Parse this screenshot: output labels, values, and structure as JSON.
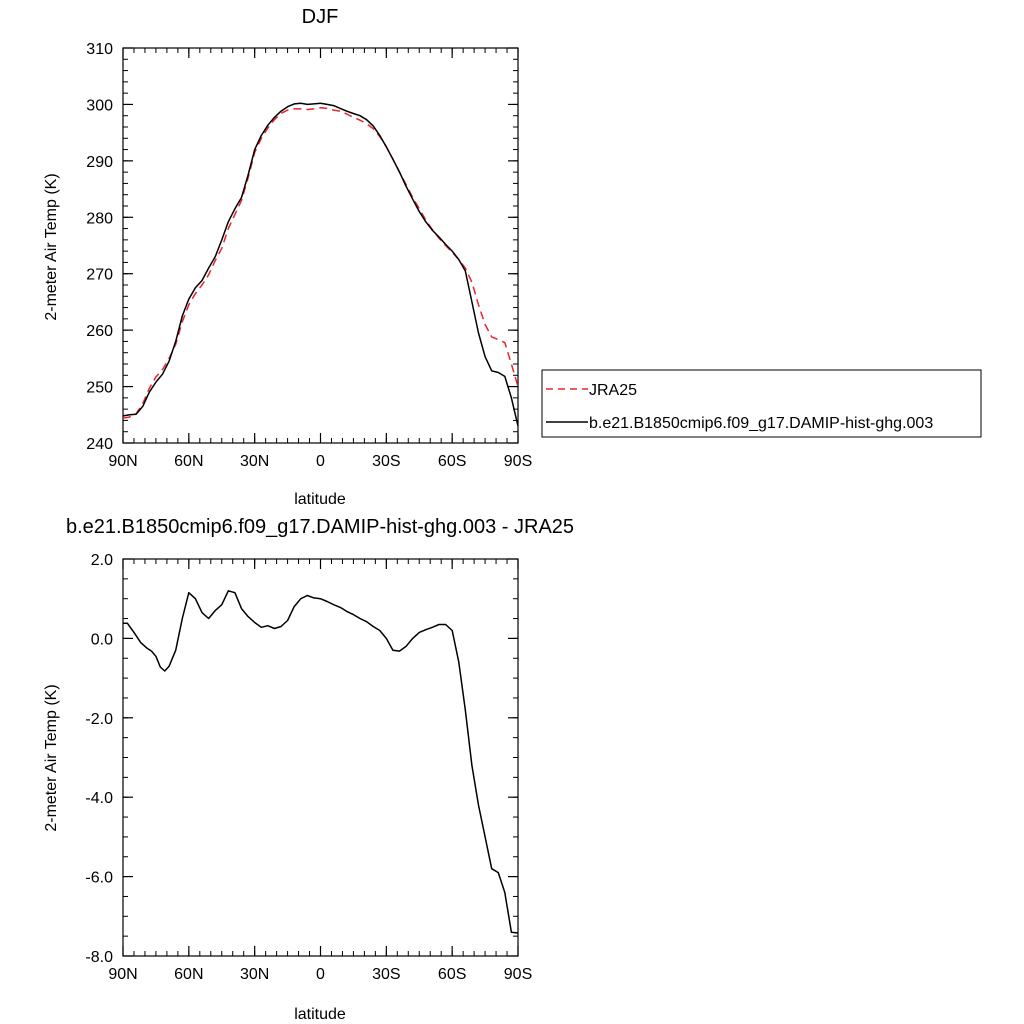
{
  "chart_data": [
    {
      "type": "line",
      "title": "DJF",
      "xlabel": "latitude",
      "ylabel": "2-meter Air Temp (K)",
      "xlim": [
        90,
        -90
      ],
      "ylim": [
        240,
        310
      ],
      "x_ticks": [
        90,
        60,
        30,
        0,
        -30,
        -60,
        -90
      ],
      "x_tick_labels": [
        "90N",
        "60N",
        "30N",
        "0",
        "30S",
        "60S",
        "90S"
      ],
      "y_ticks": [
        240,
        250,
        260,
        270,
        280,
        290,
        300,
        310
      ],
      "y_tick_labels": [
        "240",
        "250",
        "260",
        "270",
        "280",
        "290",
        "300",
        "310"
      ],
      "grid": false,
      "legend_position": "right",
      "series": [
        {
          "name": "JRA25",
          "color": "#e8242d",
          "style": "dashed",
          "x": [
            90,
            87,
            84,
            81,
            78,
            75,
            72,
            69,
            66,
            63,
            60,
            57,
            54,
            51,
            48,
            45,
            42,
            39,
            36,
            33,
            30,
            27,
            24,
            21,
            18,
            15,
            12,
            9,
            6,
            3,
            0,
            -3,
            -6,
            -9,
            -12,
            -15,
            -18,
            -21,
            -24,
            -27,
            -30,
            -33,
            -36,
            -39,
            -42,
            -45,
            -48,
            -51,
            -54,
            -57,
            -60,
            -63,
            -66,
            -69,
            -72,
            -75,
            -78,
            -81,
            -84,
            -87,
            -90
          ],
          "y": [
            244.4,
            244.6,
            245.2,
            247.0,
            249.7,
            251.7,
            253.0,
            255.0,
            257.5,
            261.5,
            264.5,
            266.5,
            268.0,
            269.8,
            272.3,
            274.5,
            278.0,
            280.5,
            283.0,
            287.0,
            291.5,
            294.0,
            295.8,
            297.3,
            298.4,
            299.0,
            299.2,
            299.2,
            299.1,
            299.2,
            299.4,
            299.3,
            299.0,
            298.8,
            298.3,
            297.7,
            297.2,
            296.6,
            295.7,
            294.3,
            292.5,
            290.3,
            288.0,
            285.8,
            283.5,
            281.5,
            279.5,
            277.8,
            276.3,
            275.0,
            273.8,
            272.5,
            271.0,
            268.5,
            264.5,
            261.0,
            258.8,
            258.3,
            257.8,
            254.0,
            250.0
          ]
        },
        {
          "name": "b.e21.B1850cmip6.f09_g17.DAMIP-hist-ghg.003",
          "color": "#000000",
          "style": "solid",
          "x": [
            90,
            87,
            84,
            81,
            78,
            75,
            72,
            69,
            66,
            63,
            60,
            57,
            54,
            51,
            48,
            45,
            42,
            39,
            36,
            33,
            30,
            27,
            24,
            21,
            18,
            15,
            12,
            9,
            6,
            3,
            0,
            -3,
            -6,
            -9,
            -12,
            -15,
            -18,
            -21,
            -24,
            -27,
            -30,
            -33,
            -36,
            -39,
            -42,
            -45,
            -48,
            -51,
            -54,
            -57,
            -60,
            -63,
            -66,
            -69,
            -72,
            -75,
            -78,
            -81,
            -84,
            -87,
            -90
          ],
          "y": [
            244.8,
            245.0,
            245.1,
            246.5,
            249.0,
            250.8,
            252.2,
            254.5,
            258.0,
            262.5,
            265.5,
            267.5,
            268.8,
            271.0,
            273.0,
            276.0,
            279.2,
            281.5,
            283.5,
            287.5,
            292.0,
            294.5,
            296.3,
            297.7,
            298.8,
            299.6,
            300.1,
            300.2,
            300.0,
            300.1,
            300.2,
            300.0,
            299.8,
            299.3,
            298.8,
            298.4,
            298.0,
            297.3,
            296.2,
            294.5,
            292.5,
            290.3,
            288.0,
            285.5,
            283.2,
            281.0,
            279.2,
            277.7,
            276.5,
            275.2,
            274.0,
            272.5,
            270.5,
            265.0,
            259.5,
            255.3,
            252.8,
            252.5,
            251.8,
            248.0,
            243.0
          ]
        }
      ]
    },
    {
      "type": "line",
      "title": "b.e21.B1850cmip6.f09_g17.DAMIP-hist-ghg.003 - JRA25",
      "xlabel": "latitude",
      "ylabel": "2-meter Air Temp (K)",
      "xlim": [
        90,
        -90
      ],
      "ylim": [
        -8,
        2
      ],
      "x_ticks": [
        90,
        60,
        30,
        0,
        -30,
        -60,
        -90
      ],
      "x_tick_labels": [
        "90N",
        "60N",
        "30N",
        "0",
        "30S",
        "60S",
        "90S"
      ],
      "y_ticks": [
        -8,
        -6,
        -4,
        -2,
        0,
        2
      ],
      "y_tick_labels": [
        "-8.0",
        "-6.0",
        "-4.0",
        "-2.0",
        "0.0",
        "2.0"
      ],
      "grid": false,
      "series": [
        {
          "color": "#000000",
          "style": "solid",
          "x": [
            90,
            88,
            85,
            82,
            79,
            77,
            75,
            73,
            71,
            69,
            66,
            63,
            60,
            57,
            54,
            51,
            48,
            45,
            42,
            39,
            36,
            33,
            30,
            27,
            24,
            21,
            18,
            15,
            12,
            9,
            6,
            3,
            0,
            -3,
            -6,
            -9,
            -12,
            -15,
            -18,
            -21,
            -24,
            -27,
            -30,
            -33,
            -36,
            -39,
            -42,
            -45,
            -48,
            -51,
            -54,
            -57,
            -60,
            -63,
            -66,
            -69,
            -72,
            -75,
            -78,
            -81,
            -84,
            -87,
            -90
          ],
          "y": [
            0.38,
            0.38,
            0.15,
            -0.1,
            -0.25,
            -0.32,
            -0.45,
            -0.72,
            -0.82,
            -0.7,
            -0.3,
            0.5,
            1.15,
            1.0,
            0.65,
            0.5,
            0.7,
            0.85,
            1.2,
            1.15,
            0.75,
            0.55,
            0.4,
            0.28,
            0.32,
            0.25,
            0.3,
            0.45,
            0.8,
            1.0,
            1.08,
            1.02,
            1.0,
            0.93,
            0.85,
            0.78,
            0.68,
            0.6,
            0.5,
            0.42,
            0.3,
            0.2,
            0.0,
            -0.3,
            -0.32,
            -0.2,
            0.0,
            0.15,
            0.22,
            0.28,
            0.35,
            0.35,
            0.2,
            -0.6,
            -1.8,
            -3.2,
            -4.2,
            -5.0,
            -5.8,
            -5.9,
            -6.4,
            -7.4,
            -7.42
          ]
        }
      ]
    }
  ]
}
